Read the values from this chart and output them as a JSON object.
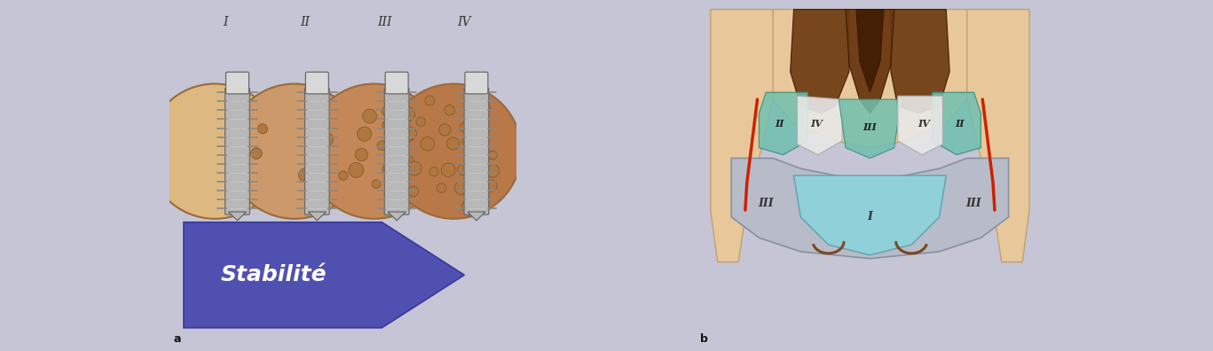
{
  "bg_color": "#c5c5d5",
  "skin_color": "#e8c89a",
  "bone_ring": "#9b6a3a",
  "bone_colors": [
    "#ddb880",
    "#cc9a6a",
    "#c48858",
    "#b87848"
  ],
  "pore_fill": "#b07840",
  "pore_edge": "#8a5828",
  "implant_body": "#b8b8b8",
  "implant_highlight": "#d8d8d8",
  "implant_shadow": "#888888",
  "implant_edge": "#606060",
  "banner_fill": "#5050b0",
  "banner_edge": "#3838a0",
  "banner_text": "#ffffff",
  "label_color": "#333333",
  "teal_color": "#70c0b0",
  "teal_edge": "#409080",
  "white_zone": "#e8e8e8",
  "gray_zone": "#b8bcc8",
  "gray_edge": "#8890a0",
  "light_blue": "#90d0d8",
  "light_blue_edge": "#60a0b0",
  "dark_brown": "#7a4820",
  "red_line": "#cc2200",
  "tooth_dark": "#6a3810",
  "tooth_med": "#9a6030",
  "roman_I": "I",
  "roman_II": "II",
  "roman_III": "III",
  "roman_IV": "IV",
  "stability_text": "Stabilité",
  "label_a": "a",
  "label_b": "b"
}
